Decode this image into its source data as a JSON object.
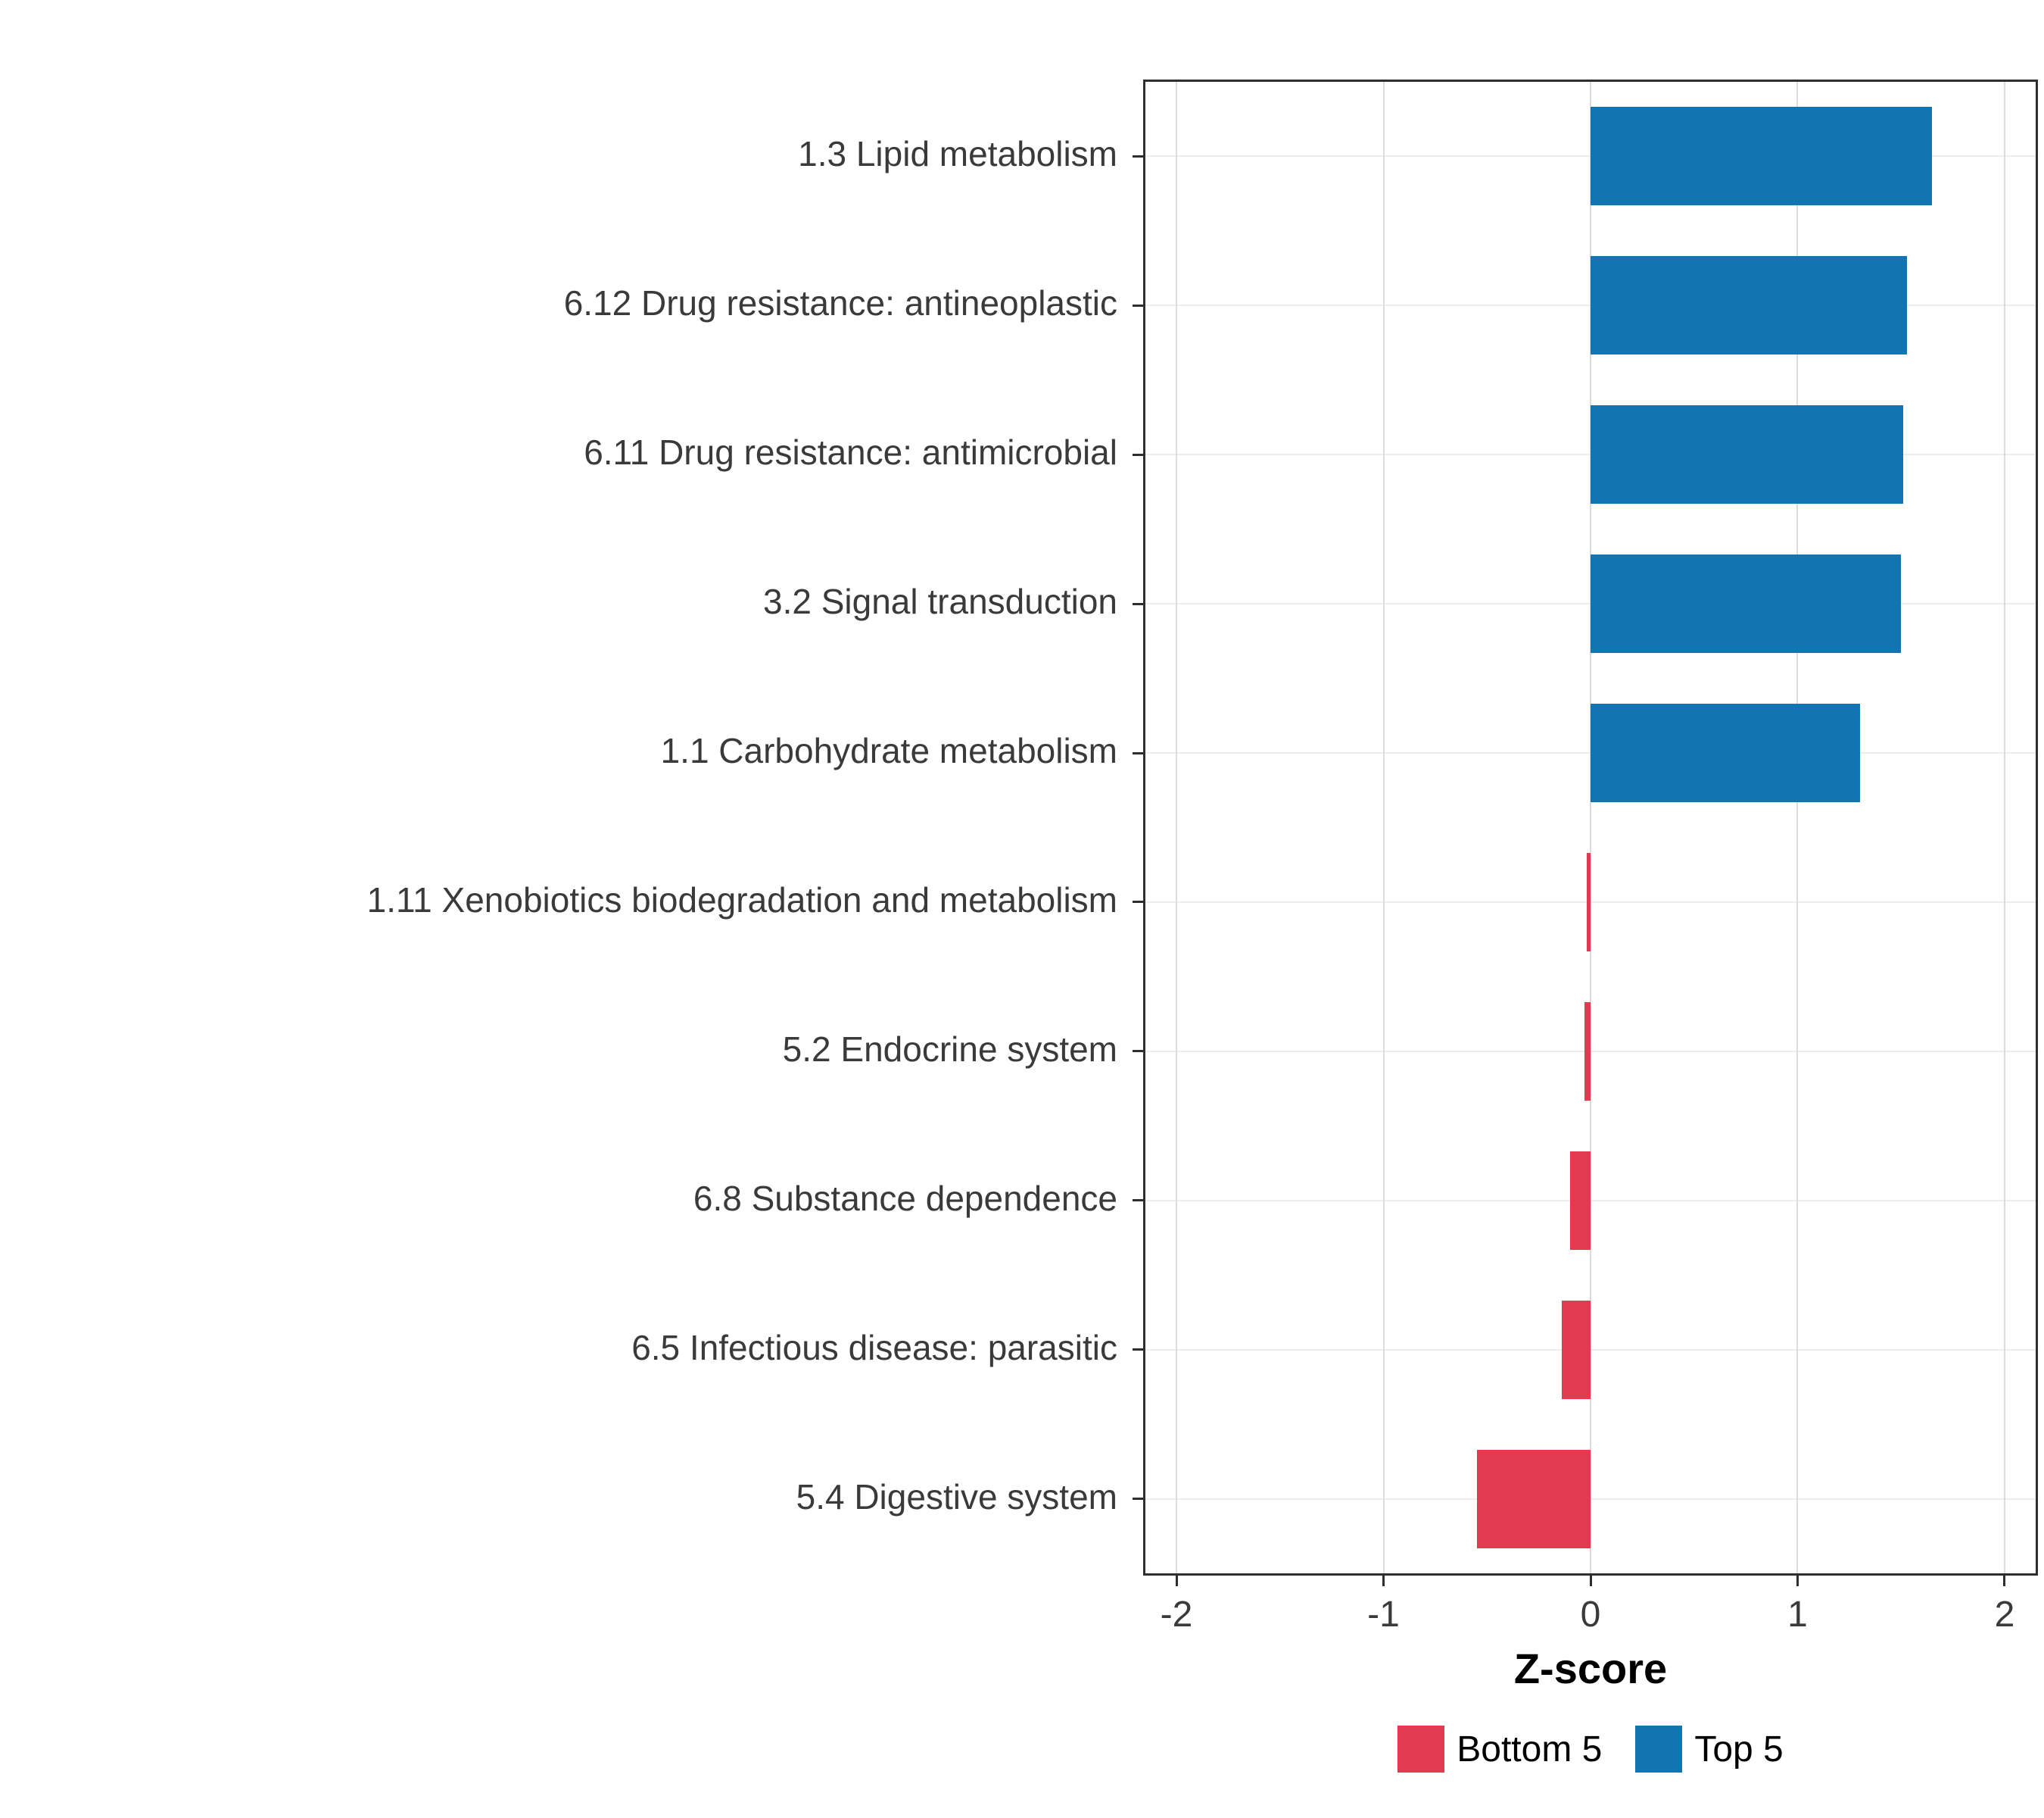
{
  "chart_data": {
    "type": "bar",
    "orientation": "horizontal",
    "title": "",
    "xlabel": "Z-score",
    "ylabel": "",
    "xlim": [
      -2.15,
      2.15
    ],
    "xticks": [
      -2,
      -1,
      0,
      1,
      2
    ],
    "grid": true,
    "categories": [
      "1.3 Lipid metabolism",
      "6.12 Drug resistance: antineoplastic",
      "6.11 Drug resistance: antimicrobial",
      "3.2 Signal transduction",
      "1.1 Carbohydrate metabolism",
      "1.11 Xenobiotics biodegradation and metabolism",
      "5.2 Endocrine system",
      "6.8 Substance dependence",
      "6.5 Infectious disease: parasitic",
      "5.4 Digestive system"
    ],
    "values": [
      1.65,
      1.53,
      1.51,
      1.5,
      1.3,
      -0.02,
      -0.03,
      -0.1,
      -0.14,
      -0.55
    ],
    "groups": [
      "Top 5",
      "Top 5",
      "Top 5",
      "Top 5",
      "Top 5",
      "Bottom 5",
      "Bottom 5",
      "Bottom 5",
      "Bottom 5",
      "Bottom 5"
    ],
    "colors": {
      "Top 5": "#1374B2",
      "Bottom 5": "#E23B4F"
    },
    "legend": {
      "position": "bottom",
      "entries": [
        {
          "label": "Bottom 5",
          "color": "#E23B4F"
        },
        {
          "label": "Top 5",
          "color": "#1374B2"
        }
      ]
    }
  }
}
